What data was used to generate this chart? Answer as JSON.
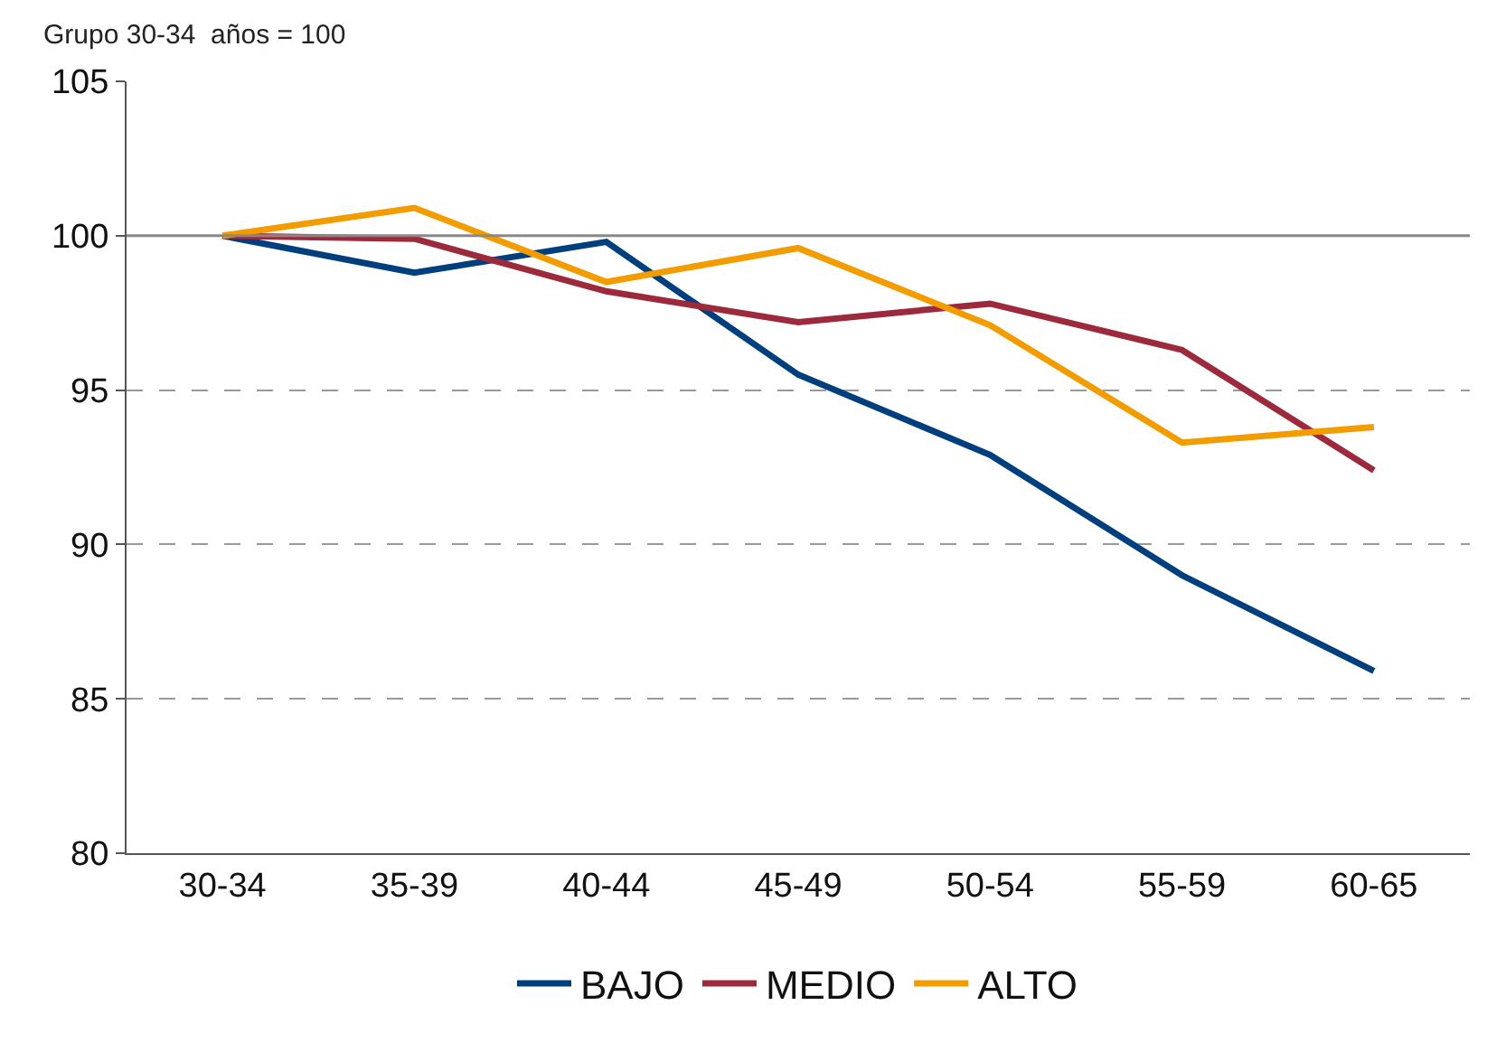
{
  "chart_data": {
    "type": "line",
    "ylabel": "Grupo 30-34  años = 100",
    "categories": [
      "30-34",
      "35-39",
      "40-44",
      "45-49",
      "50-54",
      "55-59",
      "60-65"
    ],
    "series": [
      {
        "name": "BAJO",
        "color": "#003f7d",
        "values": [
          100,
          98.8,
          99.8,
          95.5,
          92.9,
          89.0,
          85.9
        ]
      },
      {
        "name": "MEDIO",
        "color": "#9c2a3c",
        "values": [
          100,
          99.9,
          98.2,
          97.2,
          97.8,
          96.3,
          92.4
        ]
      },
      {
        "name": "ALTO",
        "color": "#f29c00",
        "values": [
          100,
          100.9,
          98.5,
          99.6,
          97.1,
          93.3,
          93.8
        ]
      }
    ],
    "ylim": [
      80,
      105
    ],
    "yticks": [
      80,
      85,
      90,
      95,
      100,
      105
    ],
    "grid": "y",
    "legend": "bottom",
    "marker": "none",
    "line_style": "solid",
    "ref_lines": [
      {
        "axis": "y",
        "value": 100,
        "label": null,
        "color": "#888888"
      }
    ]
  }
}
